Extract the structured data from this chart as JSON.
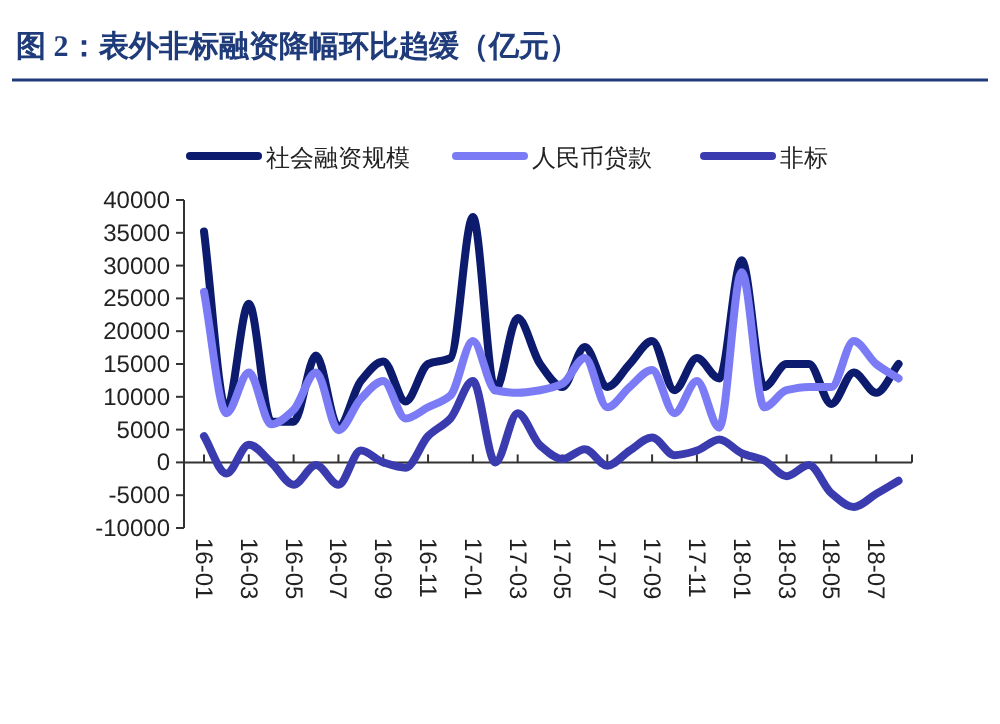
{
  "chart_data": {
    "type": "line",
    "title": "图 2：表外非标融资降幅环比趋缓（亿元）",
    "categories": [
      "16-01",
      null,
      "16-03",
      null,
      "16-05",
      null,
      "16-07",
      null,
      "16-09",
      null,
      "16-11",
      null,
      "17-01",
      null,
      "17-03",
      null,
      "17-05",
      null,
      "17-07",
      null,
      "17-09",
      null,
      "17-11",
      null,
      "18-01",
      null,
      "18-03",
      null,
      "18-05",
      null,
      "18-07",
      null
    ],
    "series": [
      {
        "name": "社会融资规模",
        "color": "#0d1b6e",
        "values": [
          35200,
          8000,
          24200,
          6200,
          6200,
          16300,
          5400,
          12400,
          15400,
          9300,
          15000,
          15900,
          37400,
          11000,
          22000,
          15000,
          11500,
          17600,
          11500,
          15000,
          18500,
          11000,
          15900,
          12800,
          30800,
          11500,
          15000,
          15000,
          8900,
          13700,
          10600,
          15000
        ]
      },
      {
        "name": "人民币贷款",
        "color": "#7b7cf5",
        "values": [
          26000,
          7500,
          13700,
          5800,
          8000,
          13700,
          4900,
          9700,
          12400,
          6700,
          8400,
          10200,
          18500,
          11000,
          10600,
          11000,
          12000,
          15900,
          8400,
          11500,
          14100,
          7500,
          12400,
          5300,
          29000,
          8400,
          11000,
          11500,
          11500,
          18500,
          15000,
          12800
        ]
      },
      {
        "name": "非标",
        "color": "#3b3bb0",
        "values": [
          4000,
          -1700,
          2700,
          0,
          -3400,
          -400,
          -3400,
          1800,
          0,
          -800,
          4000,
          6700,
          12400,
          0,
          7500,
          2600,
          500,
          2000,
          -500,
          1800,
          3800,
          1100,
          1800,
          3500,
          1400,
          300,
          -2100,
          -400,
          -4700,
          -6800,
          -4800,
          -2800
        ]
      }
    ],
    "ylim": [
      -10000,
      40000
    ],
    "yticks": [
      -10000,
      -5000,
      0,
      5000,
      10000,
      15000,
      20000,
      25000,
      30000,
      35000,
      40000
    ],
    "legend": "top",
    "line_style": "solid",
    "marker": "none"
  }
}
